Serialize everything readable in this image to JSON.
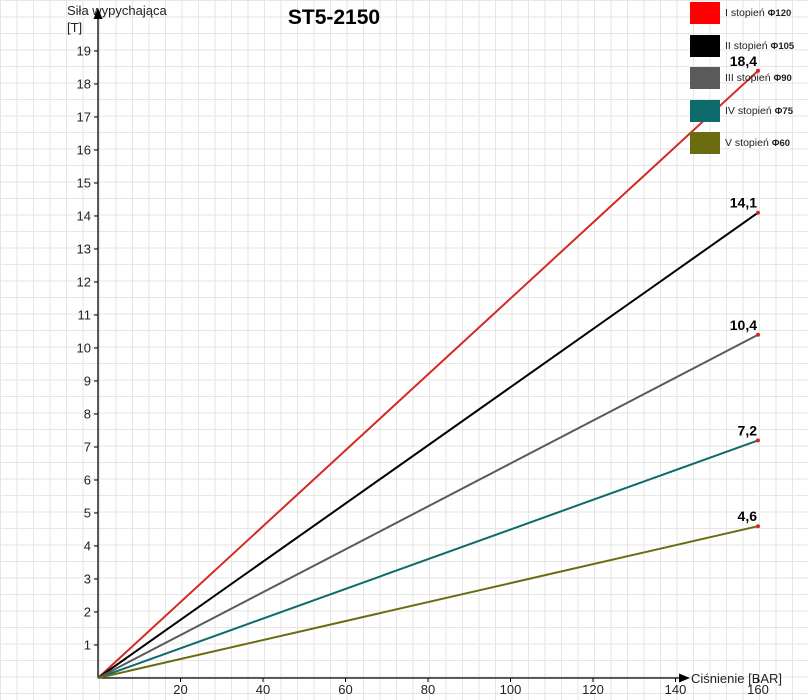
{
  "chart_data": {
    "type": "line",
    "title": "ST5-2150",
    "ylabel_line1": "Siła wypychająca",
    "ylabel_line2": "[T]",
    "xlabel": "Ciśnienie [BAR]",
    "x_ticks": [
      "20",
      "40",
      "60",
      "80",
      "100",
      "120",
      "140",
      "160"
    ],
    "y_ticks": [
      "1",
      "2",
      "3",
      "4",
      "5",
      "6",
      "7",
      "8",
      "9",
      "10",
      "11",
      "12",
      "13",
      "14",
      "15",
      "16",
      "17",
      "18",
      "19"
    ],
    "xlim": [
      0,
      160
    ],
    "ylim": [
      0,
      19
    ],
    "grid": true,
    "legend_position": "top-right",
    "series": [
      {
        "name": "I stopień",
        "dia": "Φ120",
        "color": "#d42a22",
        "swatch": "#ff0000",
        "x": [
          0,
          160
        ],
        "y": [
          0,
          18.4
        ],
        "end_label": "18,4"
      },
      {
        "name": "II stopień",
        "dia": "Φ105",
        "color": "#000000",
        "swatch": "#000000",
        "x": [
          0,
          160
        ],
        "y": [
          0,
          14.1
        ],
        "end_label": "14,1"
      },
      {
        "name": "III stopień",
        "dia": "Φ90",
        "color": "#5a5a5a",
        "swatch": "#5a5a5a",
        "x": [
          0,
          160
        ],
        "y": [
          0,
          10.4
        ],
        "end_label": "10,4"
      },
      {
        "name": "IV stopień",
        "dia": "Φ75",
        "color": "#0e6b6b",
        "swatch": "#0e6b6b",
        "x": [
          0,
          160
        ],
        "y": [
          0,
          7.2
        ],
        "end_label": "7,2"
      },
      {
        "name": "V stopień",
        "dia": "Φ60",
        "color": "#6b6b10",
        "swatch": "#6b6b10",
        "x": [
          0,
          160
        ],
        "y": [
          0,
          4.6
        ],
        "end_label": "4,6"
      }
    ]
  }
}
